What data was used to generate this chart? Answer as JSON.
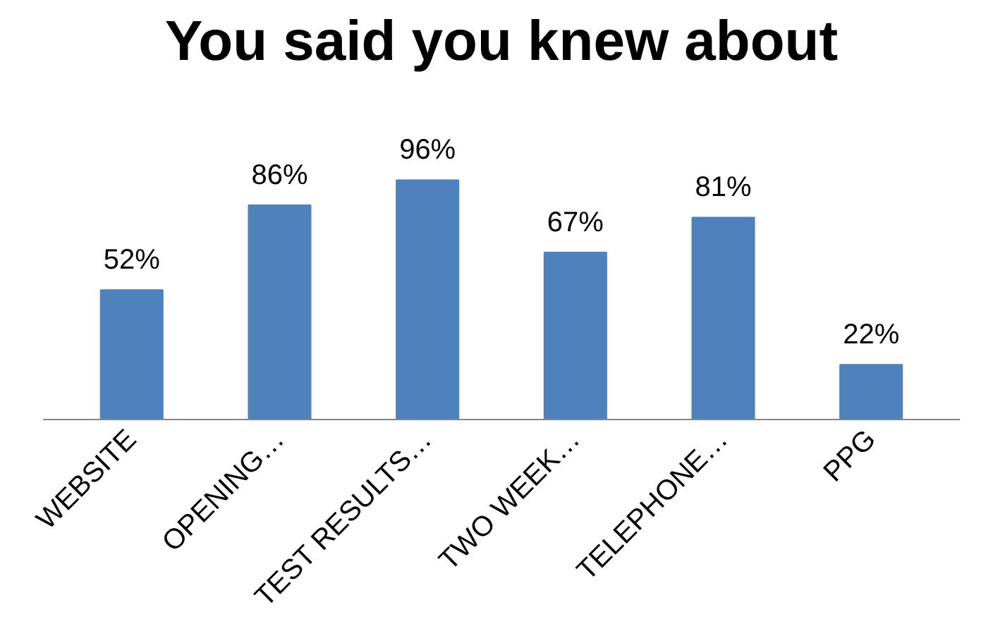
{
  "chart_data": {
    "type": "bar",
    "title": "You said you knew about",
    "categories": [
      "WEBSITE",
      "OPENING…",
      "TEST RESULTS…",
      "TWO WEEK…",
      "TELEPHONE…",
      "PPG"
    ],
    "values": [
      52,
      86,
      96,
      67,
      81,
      22
    ],
    "value_labels": [
      "52%",
      "86%",
      "96%",
      "67%",
      "81%",
      "22%"
    ],
    "color": "#4f81bd",
    "grid": false
  }
}
